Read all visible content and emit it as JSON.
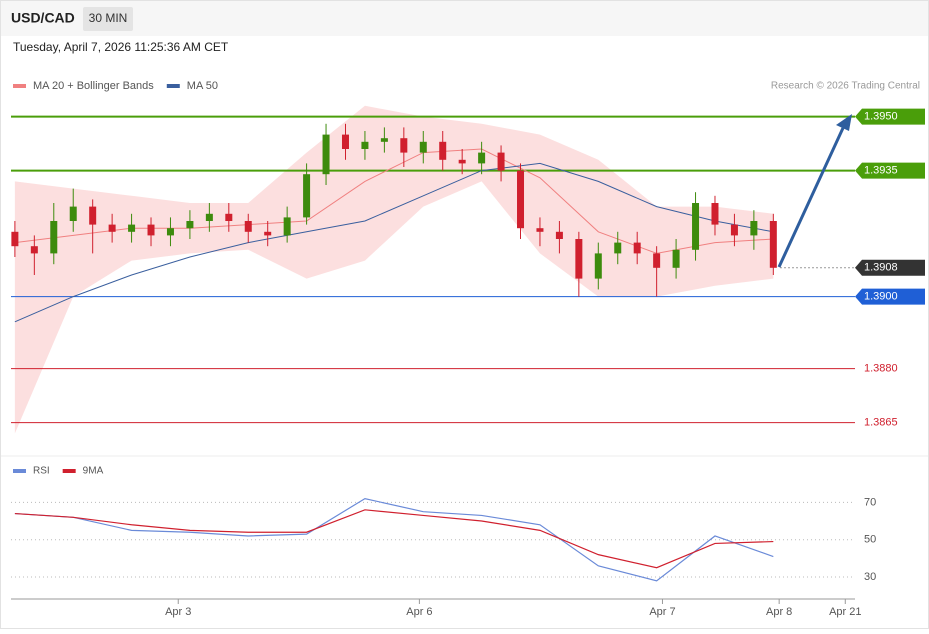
{
  "header": {
    "symbol": "USD/CAD",
    "interval": "30 MIN",
    "timestamp": "Tuesday, April 7, 2026 11:25:36 AM CET"
  },
  "chart_data": [
    {
      "type": "candlestick",
      "legend": [
        {
          "name": "MA 20 + Bollinger Bands",
          "color": "#f08080"
        },
        {
          "name": "MA 50",
          "color": "#3a5f9e"
        }
      ],
      "credit": "Research © 2026 Trading Central",
      "xlim": [
        -0.2,
        43.2
      ],
      "xticks": [
        {
          "value": 8.4,
          "label": "Apr 3"
        },
        {
          "value": 20.8,
          "label": "Apr 6"
        },
        {
          "value": 33.3,
          "label": "Apr 7"
        },
        {
          "value": 39.3,
          "label": "Apr 8"
        },
        {
          "value": 42.7,
          "label": "Apr 21"
        }
      ],
      "ylim": [
        1.3856,
        1.3956
      ],
      "up_color": "#3d8b0d",
      "down_color": "#d0202e",
      "open": [
        1.3918,
        1.3914,
        1.3912,
        1.3921,
        1.3925,
        1.392,
        1.3918,
        1.392,
        1.3917,
        1.3919,
        1.3921,
        1.3923,
        1.3921,
        1.3918,
        1.3917,
        1.3922,
        1.3934,
        1.3945,
        1.3941,
        1.3943,
        1.3944,
        1.394,
        1.3943,
        1.3938,
        1.3937,
        1.394,
        1.3935,
        1.3919,
        1.3918,
        1.3916,
        1.3905,
        1.3912,
        1.3915,
        1.3912,
        1.3908,
        1.3913,
        1.3926,
        1.392,
        1.3917,
        1.3921
      ],
      "high": [
        1.3921,
        1.3917,
        1.3926,
        1.393,
        1.3927,
        1.3923,
        1.3923,
        1.3922,
        1.3922,
        1.3924,
        1.3926,
        1.3926,
        1.3923,
        1.3921,
        1.3925,
        1.3937,
        1.3948,
        1.3948,
        1.3946,
        1.3947,
        1.3947,
        1.3946,
        1.3946,
        1.3941,
        1.3943,
        1.3942,
        1.3937,
        1.3922,
        1.3921,
        1.3918,
        1.3915,
        1.3918,
        1.3918,
        1.3914,
        1.3916,
        1.3929,
        1.3928,
        1.3923,
        1.3924,
        1.3923
      ],
      "low": [
        1.3911,
        1.3906,
        1.3909,
        1.3918,
        1.3912,
        1.3915,
        1.3915,
        1.3914,
        1.3914,
        1.3916,
        1.3918,
        1.3918,
        1.3915,
        1.3914,
        1.3915,
        1.392,
        1.3931,
        1.3938,
        1.3938,
        1.394,
        1.3936,
        1.3937,
        1.3935,
        1.3934,
        1.3934,
        1.3932,
        1.3916,
        1.3914,
        1.3912,
        1.39,
        1.3902,
        1.3909,
        1.3909,
        1.39,
        1.3905,
        1.391,
        1.3917,
        1.3914,
        1.3913,
        1.3906
      ],
      "close": [
        1.3914,
        1.3912,
        1.3921,
        1.3925,
        1.392,
        1.3918,
        1.392,
        1.3917,
        1.3919,
        1.3921,
        1.3923,
        1.3921,
        1.3918,
        1.3917,
        1.3922,
        1.3934,
        1.3945,
        1.3941,
        1.3943,
        1.3944,
        1.394,
        1.3943,
        1.3938,
        1.3937,
        1.394,
        1.3935,
        1.3919,
        1.3918,
        1.3916,
        1.3905,
        1.3912,
        1.3915,
        1.3912,
        1.3908,
        1.3913,
        1.3926,
        1.392,
        1.3917,
        1.3921,
        1.3908
      ],
      "overlay_x": [
        0,
        3,
        6,
        9,
        12,
        15,
        18,
        21,
        24,
        27,
        30,
        33,
        36,
        39
      ],
      "band_upper": [
        1.3932,
        1.393,
        1.3928,
        1.3926,
        1.3926,
        1.394,
        1.3953,
        1.395,
        1.3948,
        1.3945,
        1.3938,
        1.3925,
        1.3925,
        1.3923
      ],
      "band_lower": [
        1.3862,
        1.39,
        1.391,
        1.3912,
        1.3913,
        1.3905,
        1.391,
        1.3925,
        1.3932,
        1.3912,
        1.39,
        1.39,
        1.3903,
        1.3905
      ],
      "ma20": [
        1.3915,
        1.3917,
        1.3919,
        1.3919,
        1.392,
        1.3921,
        1.3932,
        1.394,
        1.3941,
        1.3933,
        1.3918,
        1.3912,
        1.3915,
        1.3916
      ],
      "ma50": [
        1.3893,
        1.39,
        1.3906,
        1.3911,
        1.3915,
        1.3918,
        1.3921,
        1.3928,
        1.3935,
        1.3937,
        1.3932,
        1.3925,
        1.3921,
        1.3918
      ],
      "levels": [
        {
          "value": 1.395,
          "label": "1.3950",
          "color": "#4a9e0a"
        },
        {
          "value": 1.3935,
          "label": "1.3935",
          "color": "#4a9e0a"
        },
        {
          "value": 1.3908,
          "label": "1.3908",
          "color": "#333333"
        },
        {
          "value": 1.39,
          "label": "1.3900",
          "color": "#1f5fd6"
        },
        {
          "value": 1.388,
          "label": "1.3880",
          "color": "#d0202e"
        },
        {
          "value": 1.3865,
          "label": "1.3865",
          "color": "#d0202e"
        }
      ]
    },
    {
      "type": "line",
      "legend": [
        {
          "name": "RSI",
          "color": "#6a8ad8"
        },
        {
          "name": "9MA",
          "color": "#d0202e"
        }
      ],
      "x": [
        0,
        3,
        6,
        9,
        12,
        15,
        18,
        21,
        24,
        27,
        30,
        33,
        36,
        39
      ],
      "xlim": [
        -0.2,
        43.2
      ],
      "ylim": [
        22,
        90
      ],
      "yticks": [
        70,
        50,
        30
      ],
      "series": [
        {
          "name": "RSI",
          "color": "#6a8ad8",
          "values": [
            64,
            62,
            55,
            54,
            52,
            53,
            72,
            65,
            63,
            58,
            36,
            28,
            52,
            41
          ]
        },
        {
          "name": "9MA",
          "color": "#d0202e",
          "values": [
            64,
            62,
            58,
            55,
            54,
            54,
            66,
            63,
            60,
            55,
            42,
            35,
            48,
            49
          ]
        }
      ]
    }
  ]
}
